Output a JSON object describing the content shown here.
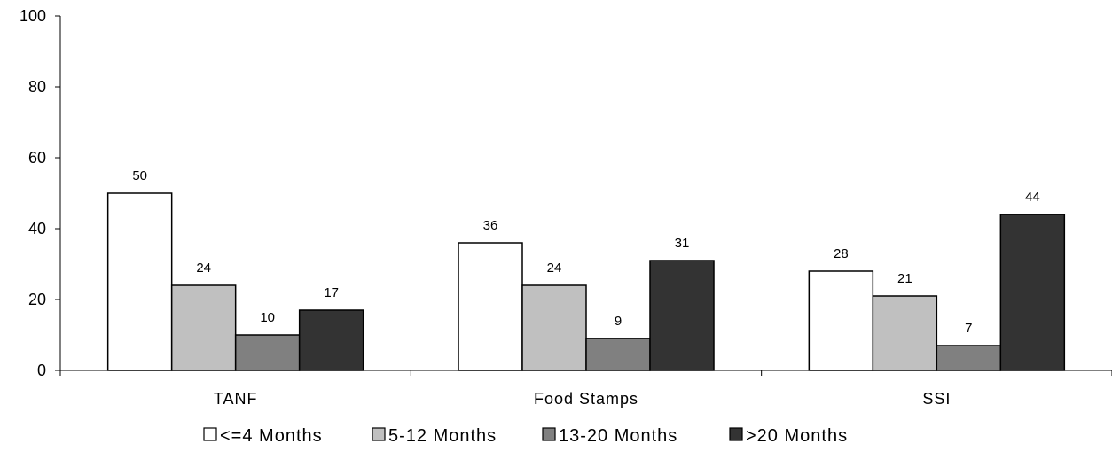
{
  "chart_data": {
    "type": "bar",
    "title": "",
    "xlabel": "",
    "ylabel": "",
    "categories": [
      "TANF",
      "Food Stamps",
      "SSI"
    ],
    "series": [
      {
        "name": "<=4 Months",
        "values": [
          50,
          36,
          28
        ],
        "color": "#ffffff"
      },
      {
        "name": "5-12 Months",
        "values": [
          24,
          24,
          21
        ],
        "color": "#c0c0c0"
      },
      {
        "name": "13-20 Months",
        "values": [
          10,
          9,
          7
        ],
        "color": "#808080"
      },
      {
        "name": ">20 Months",
        "values": [
          17,
          31,
          44
        ],
        "color": "#333333"
      }
    ],
    "ylim": [
      0,
      100
    ],
    "yticks": [
      0,
      20,
      40,
      60,
      80,
      100
    ],
    "grid": false,
    "legend_position": "bottom"
  }
}
